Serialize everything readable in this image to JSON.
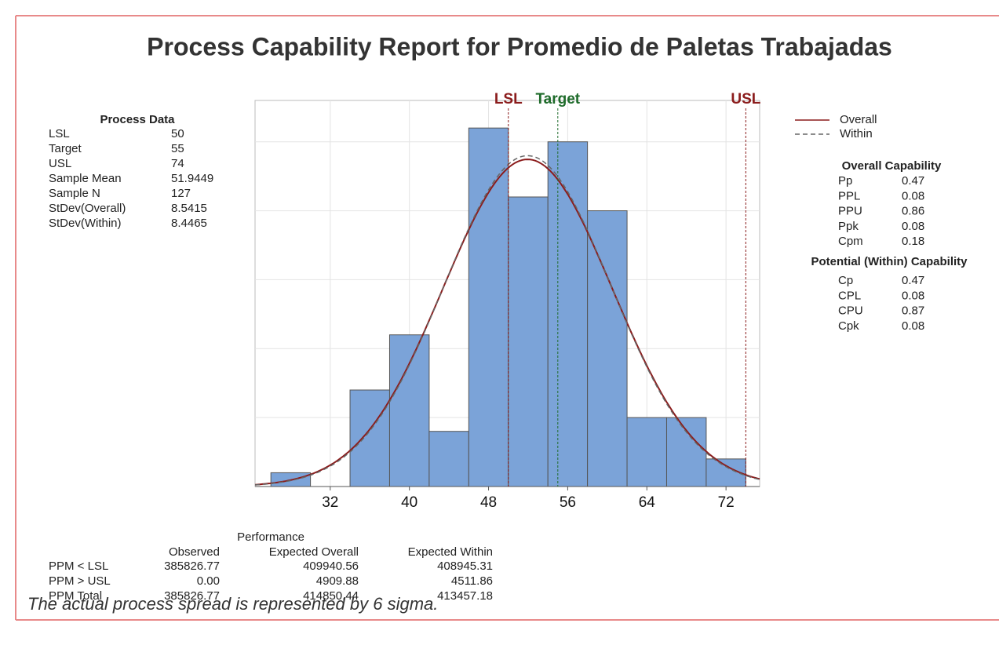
{
  "title": "Process Capability Report for Promedio de Paletas Trabajadas",
  "process_data": {
    "header": "Process Data",
    "rows": [
      [
        "LSL",
        50
      ],
      [
        "Target",
        55
      ],
      [
        "USL",
        74
      ],
      [
        "Sample Mean",
        51.9449
      ],
      [
        "Sample N",
        127
      ],
      [
        "StDev(Overall)",
        8.5415
      ],
      [
        "StDev(Within)",
        8.4465
      ]
    ]
  },
  "chart_data": {
    "type": "histogram",
    "bins": [
      26,
      30,
      34,
      38,
      42,
      46,
      50,
      54,
      58,
      62,
      66,
      70,
      74
    ],
    "counts": [
      1,
      0,
      7,
      11,
      4,
      26,
      21,
      25,
      20,
      5,
      5,
      2
    ],
    "color": "#7ba3d8",
    "xlim": [
      24.4,
      75.4
    ],
    "xticks": [
      32,
      40,
      48,
      56,
      64,
      72
    ],
    "ylim": [
      0,
      28
    ],
    "yticks": [
      5,
      10,
      15,
      20,
      25
    ],
    "grid": true,
    "spec_lines": [
      {
        "label": "LSL",
        "value": 50,
        "color": "#8b1c1c"
      },
      {
        "label": "Target",
        "value": 55,
        "color": "#1e6b2a"
      },
      {
        "label": "USL",
        "value": 74,
        "color": "#8b1c1c"
      }
    ],
    "series": [
      {
        "name": "Overall",
        "color": "#8b1c1c",
        "dash": false
      },
      {
        "name": "Within",
        "color": "#666666",
        "dash": true
      }
    ]
  },
  "overall_capability": {
    "header": "Overall Capability",
    "rows": [
      [
        "Pp",
        "0.47"
      ],
      [
        "PPL",
        "0.08"
      ],
      [
        "PPU",
        "0.86"
      ],
      [
        "Ppk",
        "0.08"
      ],
      [
        "Cpm",
        "0.18"
      ]
    ]
  },
  "potential_capability": {
    "header": "Potential (Within) Capability",
    "rows": [
      [
        "Cp",
        "0.47"
      ],
      [
        "CPL",
        "0.08"
      ],
      [
        "CPU",
        "0.87"
      ],
      [
        "Cpk",
        "0.08"
      ]
    ]
  },
  "performance": {
    "header": "Performance",
    "columns": [
      "Observed",
      "Expected Overall",
      "Expected Within"
    ],
    "rows": [
      [
        "PPM < LSL",
        "385826.77",
        "409940.56",
        "408945.31"
      ],
      [
        "PPM > USL",
        "0.00",
        "4909.88",
        "4511.86"
      ],
      [
        "PPM Total",
        "385826.77",
        "414850.44",
        "413457.18"
      ]
    ]
  },
  "footer": "The actual process spread is represented by 6 sigma."
}
